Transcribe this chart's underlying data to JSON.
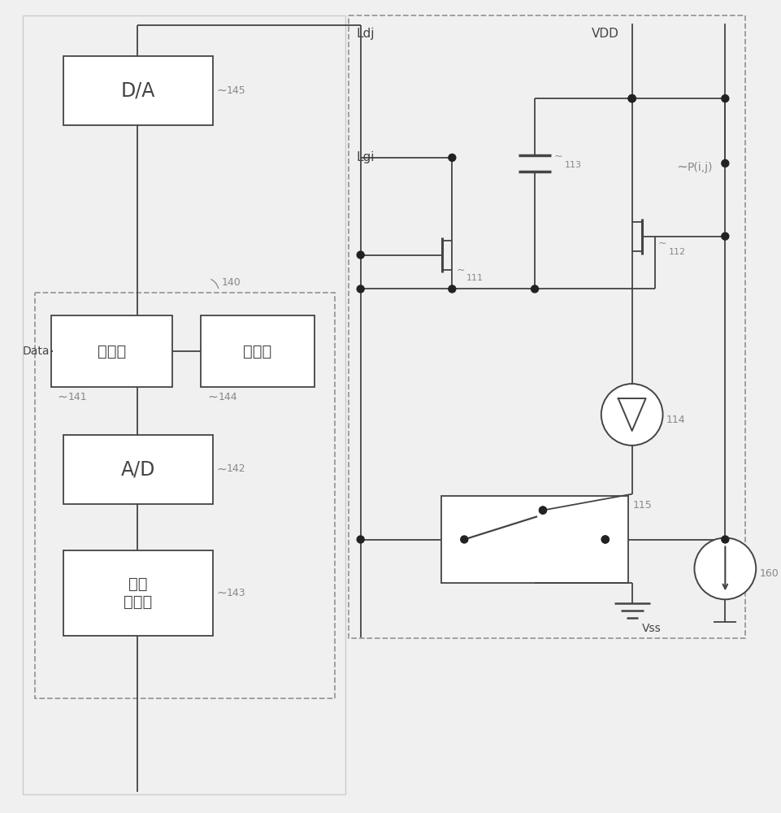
{
  "bg_color": "#f0f0f0",
  "line_color": "#444444",
  "box_color": "#ffffff",
  "dashed_color": "#999999",
  "dot_color": "#222222",
  "text_color": "#888888",
  "label_color": "#444444",
  "labels": {
    "DA": "D/A",
    "processor": "处理器",
    "memory": "存储器",
    "AD": "A/D",
    "lowpass": "低通\n滤波器",
    "data": "Data",
    "ldj": "Ldj",
    "lgi": "Lgi",
    "vdd": "VDD",
    "vss": "Vss",
    "pij": "P(i,j)",
    "n111": "111",
    "n112": "112",
    "n113": "113",
    "n114": "114",
    "n115": "115",
    "n140": "140",
    "n141": "141",
    "n142": "142",
    "n143": "143",
    "n144": "144",
    "n145": "145",
    "n160": "160"
  }
}
